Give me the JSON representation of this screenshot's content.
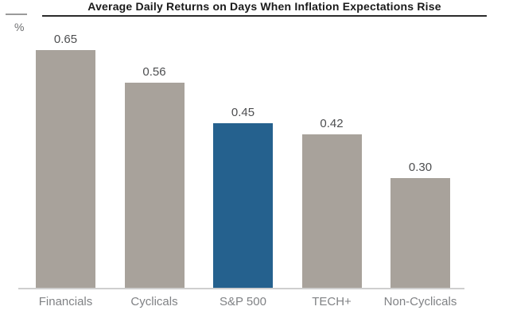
{
  "chart_data": {
    "type": "bar",
    "title": "Average Daily Returns on Days When Inflation Expectations Rise",
    "ylabel": "%",
    "xlabel": "",
    "categories": [
      "Financials",
      "Cyclicals",
      "S&P 500",
      "TECH+",
      "Non-Cyclicals"
    ],
    "values": [
      0.65,
      0.56,
      0.45,
      0.42,
      0.3
    ],
    "value_labels": [
      "0.65",
      "0.56",
      "0.45",
      "0.42",
      "0.30"
    ],
    "ylim": [
      0,
      0.7
    ],
    "grid": false,
    "legend": false,
    "highlight_index": 2,
    "highlight_color": "#25618e",
    "default_bar_color": "#a8a29b"
  },
  "colors": {
    "title_text": "#1a1a1a",
    "title_underline": "#2b2b2b",
    "axis_tick": "#9a9a9a",
    "baseline": "#cfcfcf",
    "value_label": "#4d4e50",
    "category_label": "#808285",
    "background": "#ffffff"
  }
}
